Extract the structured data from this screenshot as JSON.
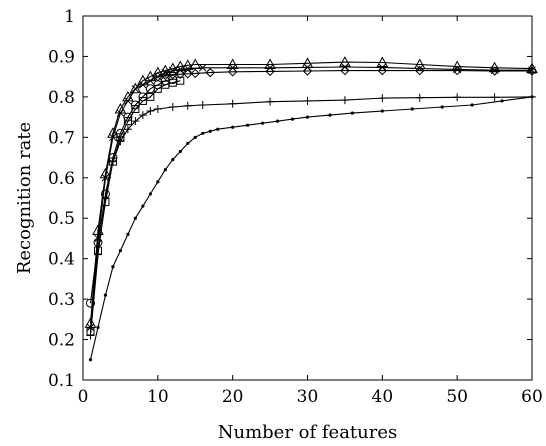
{
  "chart_data": {
    "type": "line",
    "title": "",
    "xlabel": "Number of features",
    "ylabel": "Recognition rate",
    "xlim": [
      0,
      60
    ],
    "ylim": [
      0.1,
      1.0
    ],
    "xticks": [
      "0",
      "10",
      "20",
      "30",
      "40",
      "50",
      "60"
    ],
    "yticks": [
      "0.1",
      "0.2",
      "0.3",
      "0.4",
      "0.5",
      "0.6",
      "0.7",
      "0.8",
      "0.9",
      "1"
    ],
    "grid": false,
    "legend": "none",
    "series": [
      {
        "marker": "triangle",
        "points": [
          [
            1,
            0.24
          ],
          [
            2,
            0.47
          ],
          [
            3,
            0.61
          ],
          [
            4,
            0.71
          ],
          [
            5,
            0.77
          ],
          [
            6,
            0.8
          ],
          [
            7,
            0.82
          ],
          [
            8,
            0.84
          ],
          [
            9,
            0.85
          ],
          [
            10,
            0.86
          ],
          [
            11,
            0.865
          ],
          [
            12,
            0.87
          ],
          [
            13,
            0.875
          ],
          [
            14,
            0.878
          ],
          [
            15,
            0.88
          ],
          [
            20,
            0.88
          ],
          [
            25,
            0.88
          ],
          [
            30,
            0.883
          ],
          [
            35,
            0.886
          ],
          [
            40,
            0.885
          ],
          [
            45,
            0.88
          ],
          [
            50,
            0.875
          ],
          [
            55,
            0.872
          ],
          [
            60,
            0.87
          ]
        ]
      },
      {
        "marker": "x",
        "points": [
          [
            1,
            0.23
          ],
          [
            2,
            0.45
          ],
          [
            3,
            0.6
          ],
          [
            4,
            0.7
          ],
          [
            5,
            0.76
          ],
          [
            6,
            0.79
          ],
          [
            7,
            0.82
          ],
          [
            8,
            0.83
          ],
          [
            9,
            0.84
          ],
          [
            10,
            0.85
          ],
          [
            11,
            0.86
          ],
          [
            12,
            0.865
          ],
          [
            13,
            0.868
          ],
          [
            14,
            0.87
          ],
          [
            16,
            0.872
          ],
          [
            20,
            0.872
          ],
          [
            25,
            0.872
          ],
          [
            30,
            0.873
          ],
          [
            35,
            0.874
          ],
          [
            40,
            0.873
          ],
          [
            45,
            0.87
          ],
          [
            50,
            0.868
          ],
          [
            55,
            0.866
          ],
          [
            60,
            0.866
          ]
        ]
      },
      {
        "marker": "diamond",
        "points": [
          [
            10,
            0.85
          ],
          [
            11,
            0.853
          ],
          [
            12,
            0.855
          ],
          [
            13,
            0.856
          ],
          [
            14,
            0.857
          ],
          [
            15,
            0.858
          ],
          [
            17,
            0.86
          ],
          [
            20,
            0.862
          ],
          [
            25,
            0.863
          ],
          [
            30,
            0.864
          ],
          [
            35,
            0.865
          ],
          [
            40,
            0.865
          ],
          [
            45,
            0.865
          ],
          [
            50,
            0.865
          ],
          [
            55,
            0.864
          ],
          [
            60,
            0.864
          ]
        ]
      },
      {
        "marker": "circle",
        "points": [
          [
            1,
            0.29
          ],
          [
            2,
            0.44
          ],
          [
            3,
            0.56
          ],
          [
            4,
            0.65
          ],
          [
            5,
            0.71
          ],
          [
            6,
            0.75
          ],
          [
            7,
            0.78
          ],
          [
            8,
            0.8
          ],
          [
            9,
            0.82
          ],
          [
            10,
            0.83
          ],
          [
            11,
            0.84
          ],
          [
            12,
            0.843
          ]
        ]
      },
      {
        "marker": "square",
        "points": [
          [
            1,
            0.22
          ],
          [
            2,
            0.42
          ],
          [
            3,
            0.54
          ],
          [
            4,
            0.64
          ],
          [
            5,
            0.7
          ],
          [
            6,
            0.74
          ],
          [
            7,
            0.77
          ],
          [
            8,
            0.79
          ],
          [
            9,
            0.8
          ],
          [
            10,
            0.82
          ],
          [
            11,
            0.83
          ],
          [
            12,
            0.835
          ],
          [
            13,
            0.84
          ]
        ]
      },
      {
        "marker": "plus",
        "points": [
          [
            1,
            0.21
          ],
          [
            2,
            0.41
          ],
          [
            3,
            0.55
          ],
          [
            4,
            0.64
          ],
          [
            5,
            0.69
          ],
          [
            6,
            0.72
          ],
          [
            7,
            0.74
          ],
          [
            8,
            0.755
          ],
          [
            9,
            0.765
          ],
          [
            10,
            0.77
          ],
          [
            12,
            0.775
          ],
          [
            14,
            0.778
          ],
          [
            16,
            0.78
          ],
          [
            20,
            0.783
          ],
          [
            25,
            0.788
          ],
          [
            30,
            0.79
          ],
          [
            35,
            0.792
          ],
          [
            40,
            0.797
          ],
          [
            45,
            0.798
          ],
          [
            50,
            0.799
          ],
          [
            55,
            0.799
          ],
          [
            60,
            0.8
          ]
        ]
      },
      {
        "marker": "dot",
        "points": [
          [
            1,
            0.15
          ],
          [
            2,
            0.23
          ],
          [
            3,
            0.31
          ],
          [
            4,
            0.38
          ],
          [
            5,
            0.42
          ],
          [
            6,
            0.46
          ],
          [
            7,
            0.5
          ],
          [
            8,
            0.53
          ],
          [
            9,
            0.56
          ],
          [
            10,
            0.59
          ],
          [
            11,
            0.62
          ],
          [
            12,
            0.645
          ],
          [
            13,
            0.665
          ],
          [
            14,
            0.685
          ],
          [
            15,
            0.7
          ],
          [
            16,
            0.71
          ],
          [
            17,
            0.715
          ],
          [
            18,
            0.72
          ],
          [
            20,
            0.725
          ],
          [
            22,
            0.73
          ],
          [
            24,
            0.735
          ],
          [
            26,
            0.74
          ],
          [
            28,
            0.745
          ],
          [
            30,
            0.75
          ],
          [
            33,
            0.755
          ],
          [
            36,
            0.76
          ],
          [
            40,
            0.765
          ],
          [
            44,
            0.77
          ],
          [
            48,
            0.775
          ],
          [
            52,
            0.78
          ],
          [
            56,
            0.79
          ],
          [
            60,
            0.8
          ]
        ]
      }
    ]
  }
}
